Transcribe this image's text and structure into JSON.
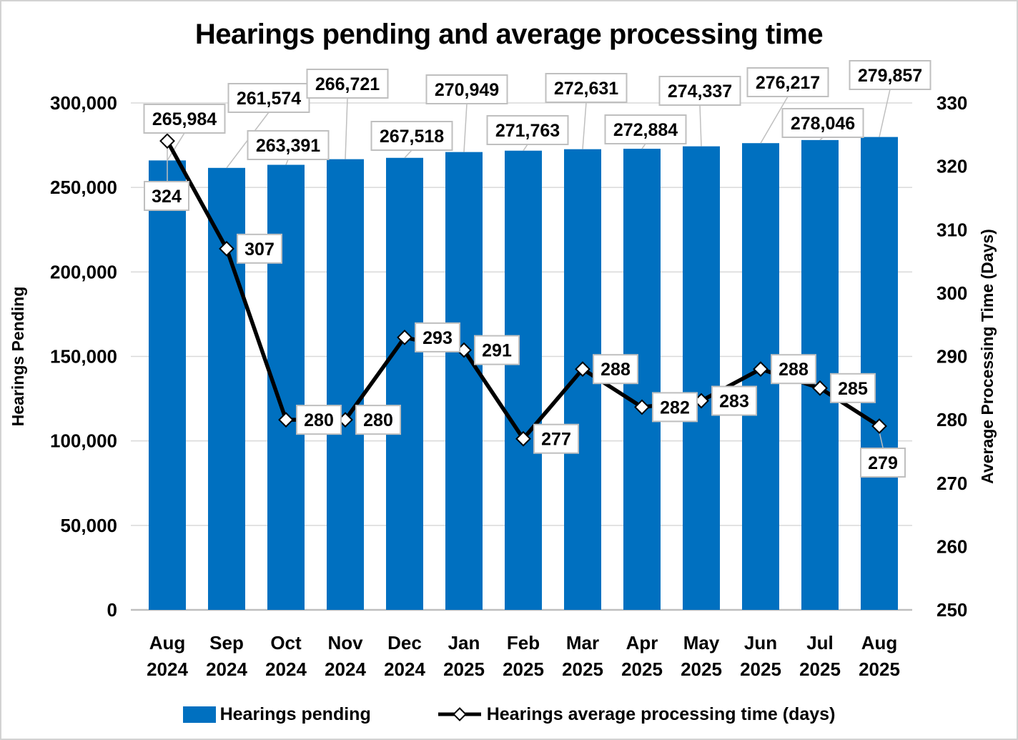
{
  "title": "Hearings pending and average processing time",
  "chart_data": {
    "type": "combo-bar-line",
    "grid": "horizontal",
    "legend_position": "bottom",
    "categories": [
      {
        "month": "Aug",
        "year": "2024"
      },
      {
        "month": "Sep",
        "year": "2024"
      },
      {
        "month": "Oct",
        "year": "2024"
      },
      {
        "month": "Nov",
        "year": "2024"
      },
      {
        "month": "Dec",
        "year": "2024"
      },
      {
        "month": "Jan",
        "year": "2025"
      },
      {
        "month": "Feb",
        "year": "2025"
      },
      {
        "month": "Mar",
        "year": "2025"
      },
      {
        "month": "Apr",
        "year": "2025"
      },
      {
        "month": "May",
        "year": "2025"
      },
      {
        "month": "Jun",
        "year": "2025"
      },
      {
        "month": "Jul",
        "year": "2025"
      },
      {
        "month": "Aug",
        "year": "2025"
      }
    ],
    "series": [
      {
        "name": "Hearings pending",
        "type": "bar",
        "axis": "left",
        "color": "#0070C0",
        "values": [
          265984,
          261574,
          263391,
          266721,
          267518,
          270949,
          271763,
          272631,
          272884,
          274337,
          276217,
          278046,
          279857
        ],
        "labels": [
          "265,984",
          "261,574",
          "263,391",
          "266,721",
          "267,518",
          "270,949",
          "271,763",
          "272,631",
          "272,884",
          "274,337",
          "276,217",
          "278,046",
          "279,857"
        ]
      },
      {
        "name": "Hearings average processing time (days)",
        "type": "line",
        "axis": "right",
        "color": "#000000",
        "marker": "diamond",
        "values": [
          324,
          307,
          280,
          280,
          293,
          291,
          277,
          288,
          282,
          283,
          288,
          285,
          279
        ],
        "labels": [
          "324",
          "307",
          "280",
          "280",
          "293",
          "291",
          "277",
          "288",
          "282",
          "283",
          "288",
          "285",
          "279"
        ]
      }
    ],
    "left_axis": {
      "title": "Hearings Pending",
      "min": 0,
      "max": 300000,
      "step": 50000,
      "ticks": [
        "300,000",
        "250,000",
        "200,000",
        "150,000",
        "100,000",
        "50,000",
        "0"
      ]
    },
    "right_axis": {
      "title": "Average Processing Time (Days)",
      "min": 250,
      "max": 330,
      "step": 10,
      "ticks": [
        "330",
        "320",
        "310",
        "300",
        "290",
        "280",
        "270",
        "260",
        "250"
      ]
    }
  },
  "colors": {
    "bar": "#0070C0",
    "line": "#000000",
    "grid": "#D9D9D9",
    "axis_line": "#BFBFBF",
    "label_box_border": "#BFBFBF",
    "leader": "#BFBFBF"
  }
}
